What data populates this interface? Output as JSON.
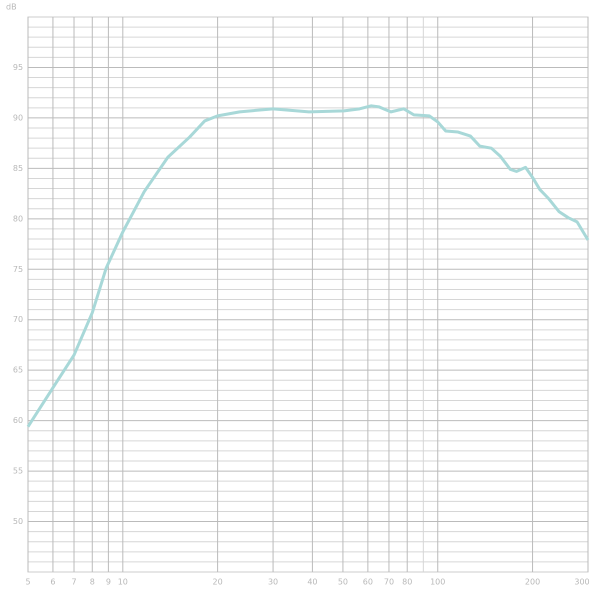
{
  "chart_data": {
    "type": "line",
    "y_label": "dB",
    "x": [
      5,
      5.87,
      7,
      8,
      8.85,
      10,
      11.7,
      13.9,
      16.3,
      18.2,
      20,
      23.5,
      30,
      39,
      50.4,
      56.5,
      61.5,
      65,
      71,
      78,
      84,
      94,
      100,
      106,
      116,
      127,
      136,
      148,
      158,
      170,
      178,
      190,
      200,
      211,
      225,
      243,
      260,
      277,
      300
    ],
    "series": [
      {
        "color": "#a8d8d8",
        "values": [
          59.4,
          62.8,
          66.5,
          70.7,
          75.1,
          78.7,
          82.7,
          86.1,
          88.1,
          89.7,
          90.2,
          90.6,
          90.9,
          90.6,
          90.7,
          90.9,
          91.2,
          91.1,
          90.6,
          90.9,
          90.3,
          90.2,
          89.6,
          88.7,
          88.6,
          88.2,
          87.2,
          87.0,
          86.2,
          84.9,
          84.7,
          85.1,
          84.1,
          82.9,
          82.0,
          80.7,
          80.1,
          79.7,
          77.9
        ]
      }
    ],
    "xlim": [
      5,
      300
    ],
    "log_x": true,
    "xticks": [
      5,
      6,
      7,
      8,
      9,
      10,
      20,
      30,
      40,
      50,
      60,
      70,
      80,
      100,
      200,
      300
    ],
    "x_minor_ticks": [
      90
    ],
    "ylim": [
      45,
      100
    ],
    "yticks": [
      50,
      55,
      60,
      65,
      70,
      75,
      80,
      85,
      90,
      95
    ],
    "y_minor_ticks": [
      46,
      47,
      48,
      49,
      51,
      52,
      53,
      54,
      56,
      57,
      58,
      59,
      61,
      62,
      63,
      64,
      66,
      67,
      68,
      69,
      71,
      72,
      73,
      74,
      76,
      77,
      78,
      79,
      81,
      82,
      83,
      84,
      86,
      87,
      88,
      89,
      91,
      92,
      93,
      94,
      96,
      97,
      98,
      99
    ],
    "grid": true
  }
}
